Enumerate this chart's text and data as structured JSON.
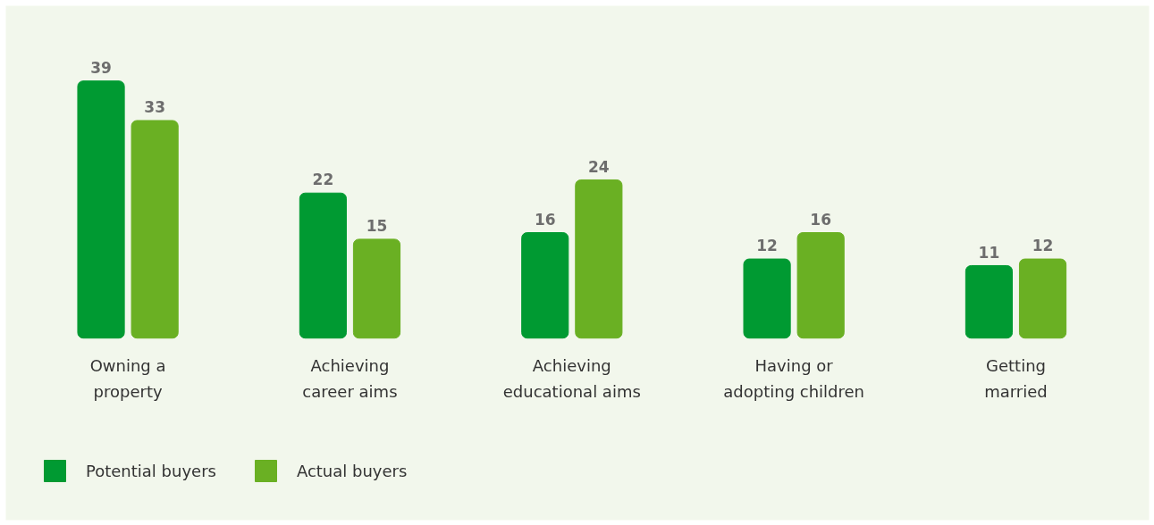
{
  "chart_data": {
    "type": "bar",
    "categories": [
      "Owning a\nproperty",
      "Achieving\ncareer aims",
      "Achieving\neducational aims",
      "Having or\nadopting children",
      "Getting\nmarried"
    ],
    "series": [
      {
        "name": "Potential buyers",
        "color": "#009a32",
        "values": [
          39,
          22,
          16,
          12,
          11
        ]
      },
      {
        "name": "Actual buyers",
        "color": "#6ab023",
        "values": [
          33,
          15,
          24,
          16,
          12
        ]
      }
    ],
    "data_labels": true,
    "grid": false,
    "legend": "bottom left"
  }
}
